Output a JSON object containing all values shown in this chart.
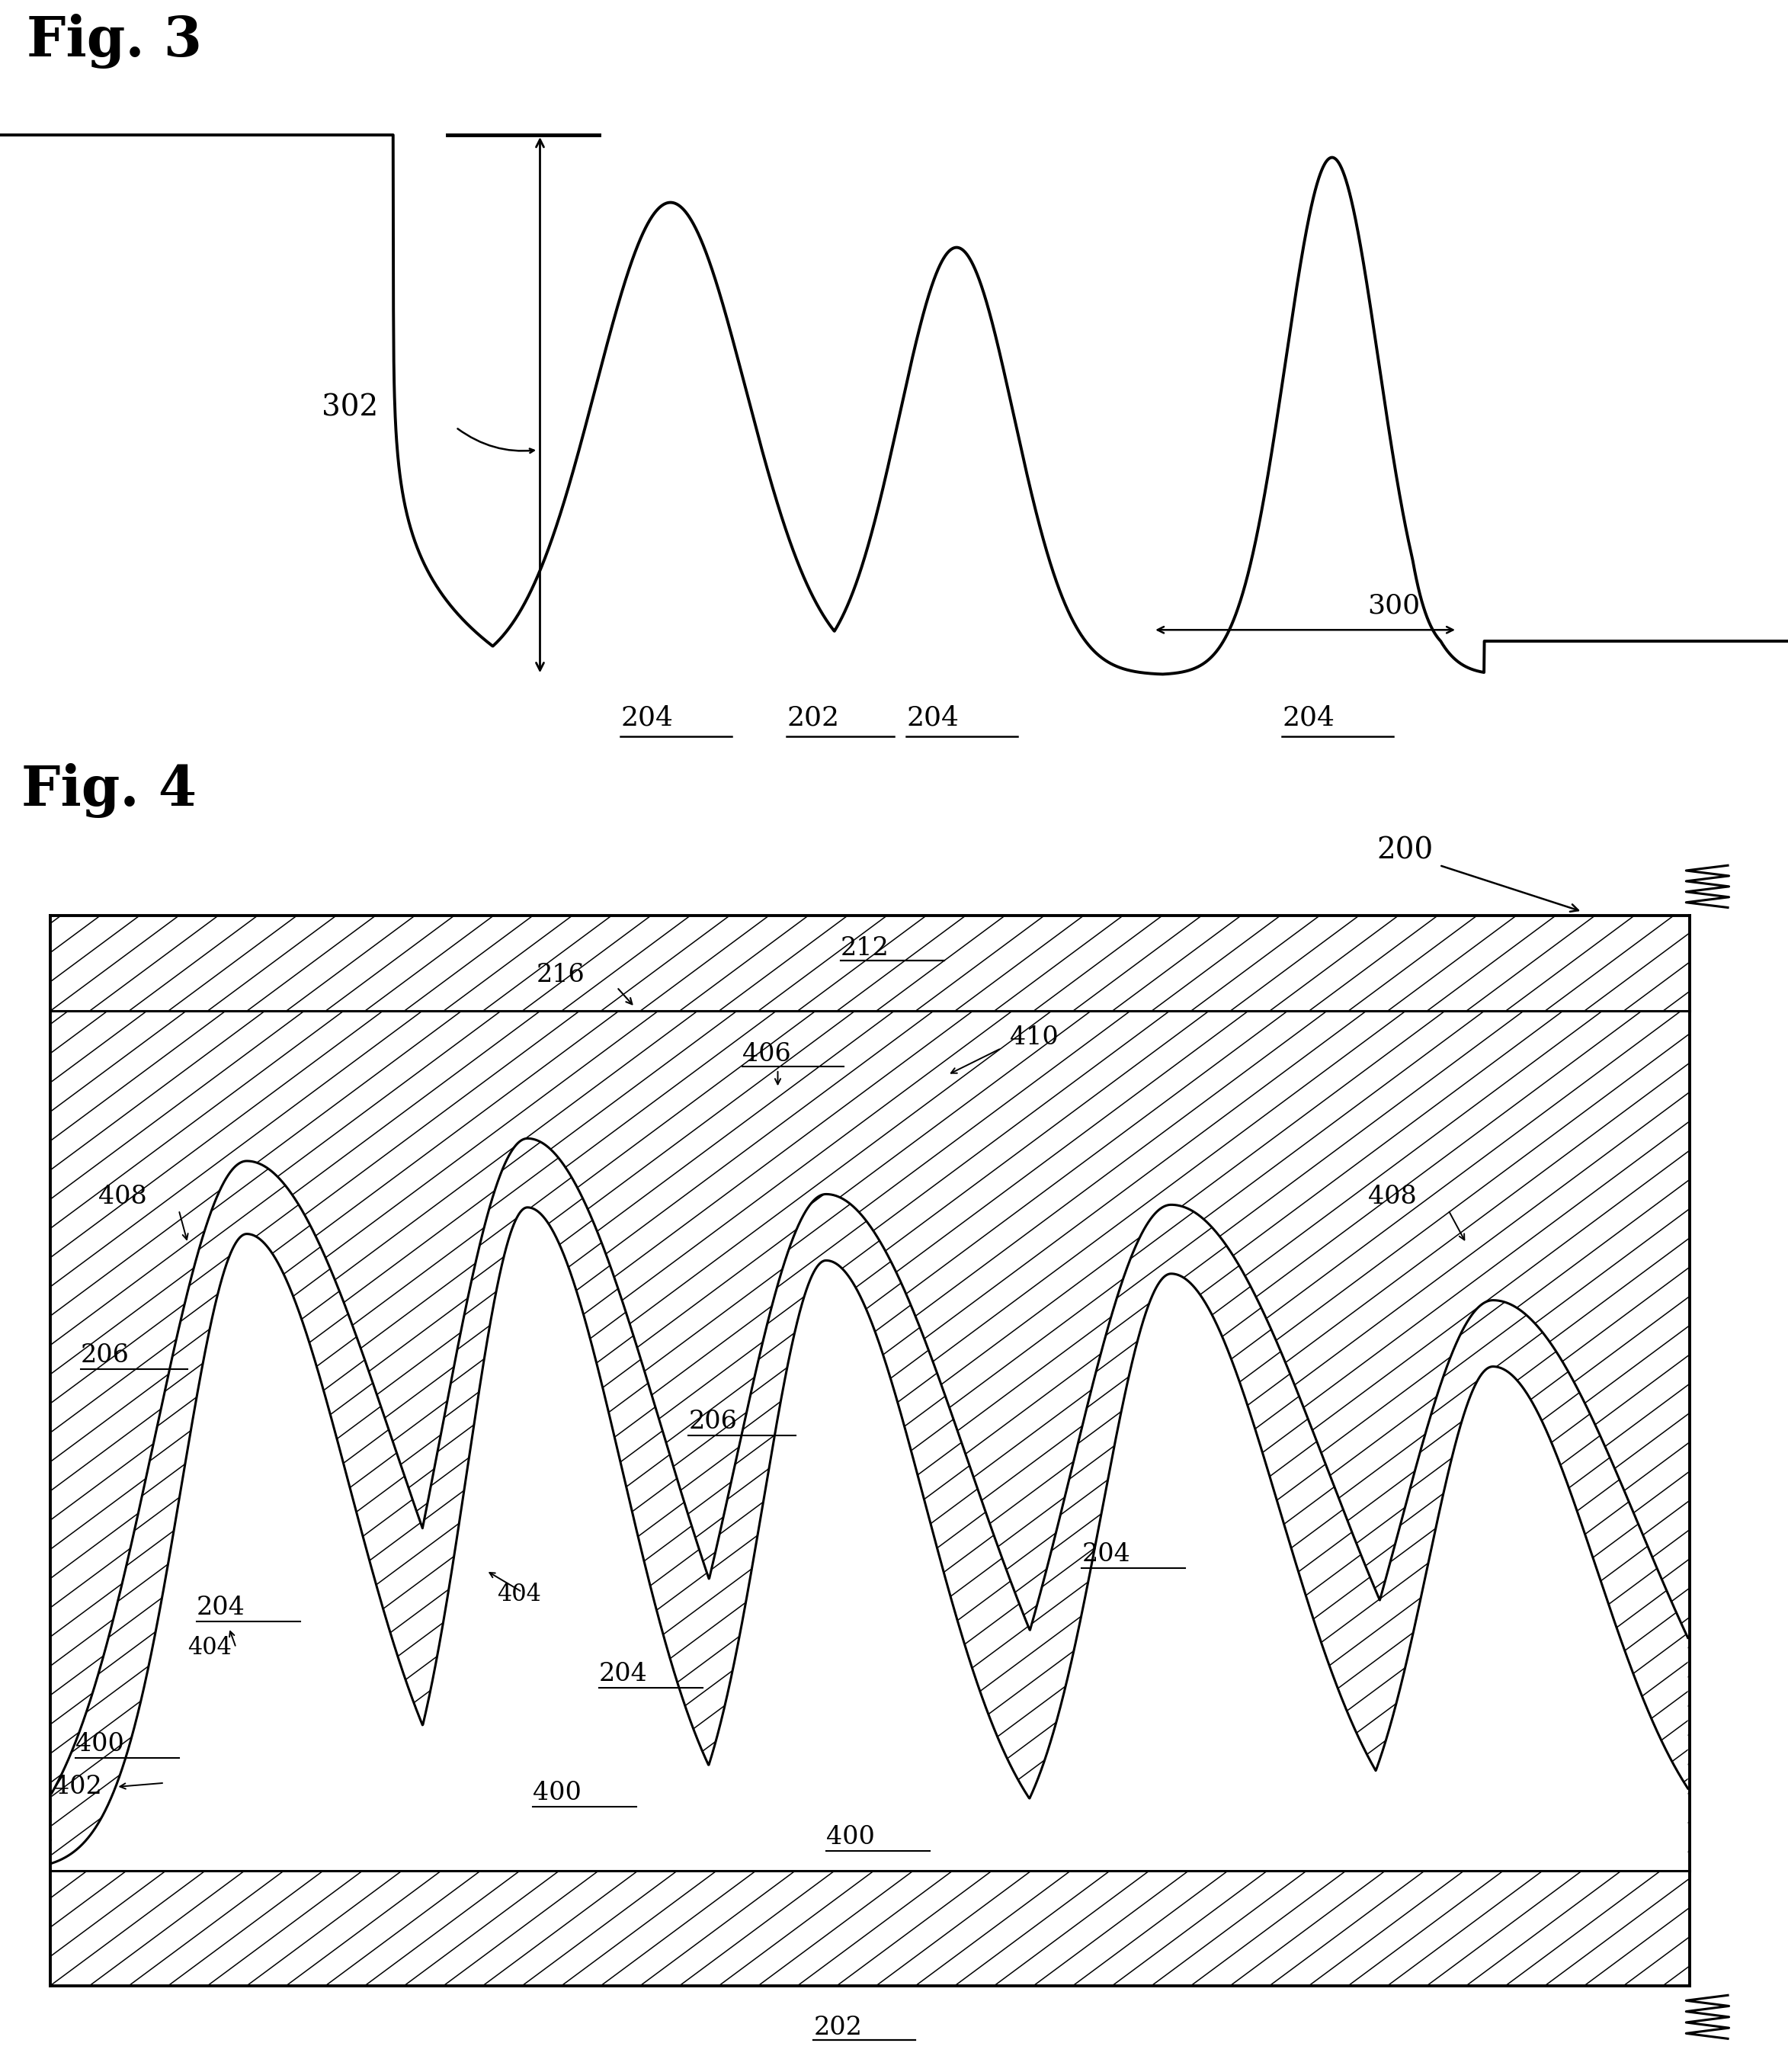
{
  "fig_width": 23.46,
  "fig_height": 27.18,
  "bg_color": "#ffffff",
  "line_color": "#000000",
  "fig3_label": "Fig. 3",
  "fig4_label": "Fig. 4",
  "label_302": "302",
  "label_204": "204",
  "label_202": "202",
  "label_300": "300",
  "label_200": "200",
  "label_212": "212",
  "label_216": "216",
  "label_406": "406",
  "label_410": "410",
  "label_408": "408",
  "label_206": "206",
  "label_204b": "204",
  "label_400": "400",
  "label_402": "402",
  "label_404": "404",
  "label_202b": "202",
  "fontsize_title": 52,
  "fontsize_label": 28,
  "fontsize_ref": 24
}
